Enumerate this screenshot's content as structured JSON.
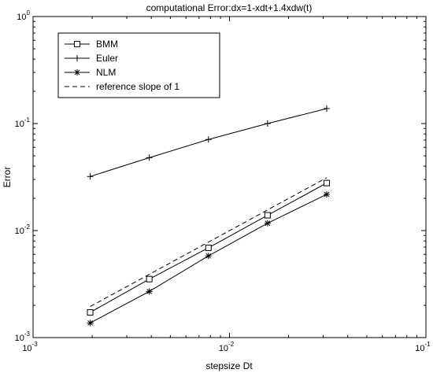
{
  "chart_data": {
    "type": "line",
    "title": "computational Error:dx=1-xdt+1.4xdw(t)",
    "xlabel": "stepsize Dt",
    "ylabel": "Error",
    "xscale": "log",
    "yscale": "log",
    "xlim": [
      0.001,
      0.1
    ],
    "ylim": [
      0.001,
      1
    ],
    "grid": false,
    "legend_position": "top-left",
    "x_ticks": [
      {
        "value": 0.001,
        "base": "10",
        "exp": "-3"
      },
      {
        "value": 0.01,
        "base": "10",
        "exp": "-2"
      },
      {
        "value": 0.1,
        "base": "10",
        "exp": "-1"
      }
    ],
    "y_ticks": [
      {
        "value": 0.001,
        "base": "10",
        "exp": "-3"
      },
      {
        "value": 0.01,
        "base": "10",
        "exp": "-2"
      },
      {
        "value": 0.1,
        "base": "10",
        "exp": "-1"
      },
      {
        "value": 1,
        "base": "10",
        "exp": "0"
      }
    ],
    "x": [
      0.001953125,
      0.00390625,
      0.0078125,
      0.015625,
      0.03125
    ],
    "series": [
      {
        "name": "BMM",
        "marker": "square",
        "dash": "solid",
        "values": [
          0.00172,
          0.00352,
          0.0069,
          0.0139,
          0.0278
        ]
      },
      {
        "name": "Euler",
        "marker": "plus",
        "dash": "solid",
        "values": [
          0.032,
          0.048,
          0.071,
          0.1,
          0.138
        ]
      },
      {
        "name": "NLM",
        "marker": "star",
        "dash": "solid",
        "values": [
          0.00137,
          0.0027,
          0.0058,
          0.0117,
          0.0218
        ]
      },
      {
        "name": "reference slope of 1",
        "marker": "none",
        "dash": "dashed",
        "values": [
          0.00195,
          0.0039,
          0.0078,
          0.0156,
          0.0312
        ]
      }
    ]
  }
}
